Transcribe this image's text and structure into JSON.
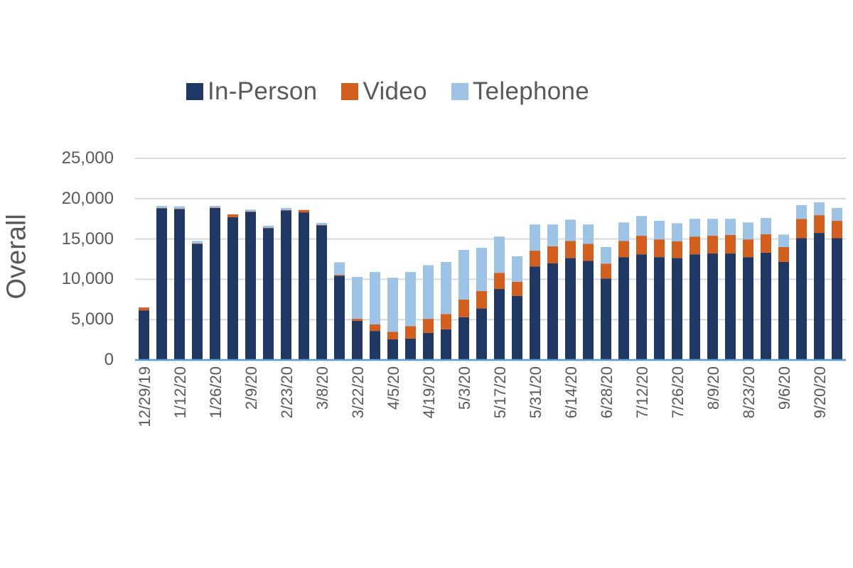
{
  "chart_data": {
    "type": "bar",
    "stacked": true,
    "title": "",
    "xlabel": "",
    "ylabel": "Overall",
    "ylim": [
      0,
      25000
    ],
    "yticks": [
      "0",
      "5,000",
      "10,000",
      "15,000",
      "20,000",
      "25,000"
    ],
    "ytick_values": [
      0,
      5000,
      10000,
      15000,
      20000,
      25000
    ],
    "grid": true,
    "legend_position": "top",
    "colors": {
      "In-Person": "#1f3864",
      "Video": "#d35f1f",
      "Telephone": "#9dc3e6",
      "grid": "#d9d9d9",
      "axis": "#5b9bd5"
    },
    "categories": [
      "12/29/19",
      "1/5/20",
      "1/12/20",
      "1/19/20",
      "1/26/20",
      "2/2/20",
      "2/9/20",
      "2/16/20",
      "2/23/20",
      "3/1/20",
      "3/8/20",
      "3/15/20",
      "3/22/20",
      "3/29/20",
      "4/5/20",
      "4/12/20",
      "4/19/20",
      "4/26/20",
      "5/3/20",
      "5/10/20",
      "5/17/20",
      "5/24/20",
      "5/31/20",
      "6/7/20",
      "6/14/20",
      "6/21/20",
      "6/28/20",
      "7/5/20",
      "7/12/20",
      "7/19/20",
      "7/26/20",
      "8/2/20",
      "8/9/20",
      "8/16/20",
      "8/23/20",
      "8/30/20",
      "9/6/20",
      "9/13/20",
      "9/20/20",
      "9/27/20"
    ],
    "tick_labels": [
      "12/29/19",
      "1/12/20",
      "1/26/20",
      "2/9/20",
      "2/23/20",
      "3/8/20",
      "3/22/20",
      "4/5/20",
      "4/19/20",
      "5/3/20",
      "5/17/20",
      "5/31/20",
      "6/14/20",
      "6/28/20",
      "7/12/20",
      "7/26/20",
      "8/9/20",
      "8/23/20",
      "9/6/20",
      "9/20/20"
    ],
    "series": [
      {
        "name": "In-Person",
        "values": [
          6150,
          18800,
          18700,
          14400,
          18850,
          17700,
          18350,
          16350,
          18550,
          18300,
          16700,
          10450,
          4850,
          3600,
          2550,
          2650,
          3350,
          3800,
          5300,
          6400,
          8800,
          7950,
          11600,
          12000,
          12650,
          12300,
          10100,
          12750,
          13100,
          12750,
          12650,
          13100,
          13200,
          13200,
          12750,
          13300,
          12150,
          15100,
          15750,
          15100
        ]
      },
      {
        "name": "Video",
        "values": [
          350,
          50,
          50,
          50,
          50,
          350,
          50,
          50,
          50,
          300,
          50,
          100,
          250,
          800,
          950,
          1550,
          1750,
          1900,
          2200,
          2150,
          2000,
          1750,
          1950,
          2100,
          2100,
          2100,
          1850,
          2000,
          2300,
          2200,
          2050,
          2200,
          2200,
          2300,
          2200,
          2300,
          1850,
          2400,
          2200,
          2150
        ]
      },
      {
        "name": "Telephone",
        "values": [
          50,
          250,
          300,
          300,
          200,
          0,
          250,
          250,
          250,
          0,
          250,
          1550,
          5200,
          6500,
          6700,
          6700,
          6650,
          6450,
          6150,
          5350,
          4500,
          3150,
          3250,
          2700,
          2650,
          2400,
          2050,
          2300,
          2450,
          2300,
          2250,
          2200,
          2100,
          2000,
          2100,
          2000,
          1550,
          1700,
          1600,
          1600
        ]
      }
    ]
  },
  "legend": {
    "items": [
      {
        "label": "In-Person",
        "color": "#1f3864"
      },
      {
        "label": "Video",
        "color": "#d35f1f"
      },
      {
        "label": "Telephone",
        "color": "#9dc3e6"
      }
    ]
  },
  "yaxis": {
    "title": "Overall"
  }
}
